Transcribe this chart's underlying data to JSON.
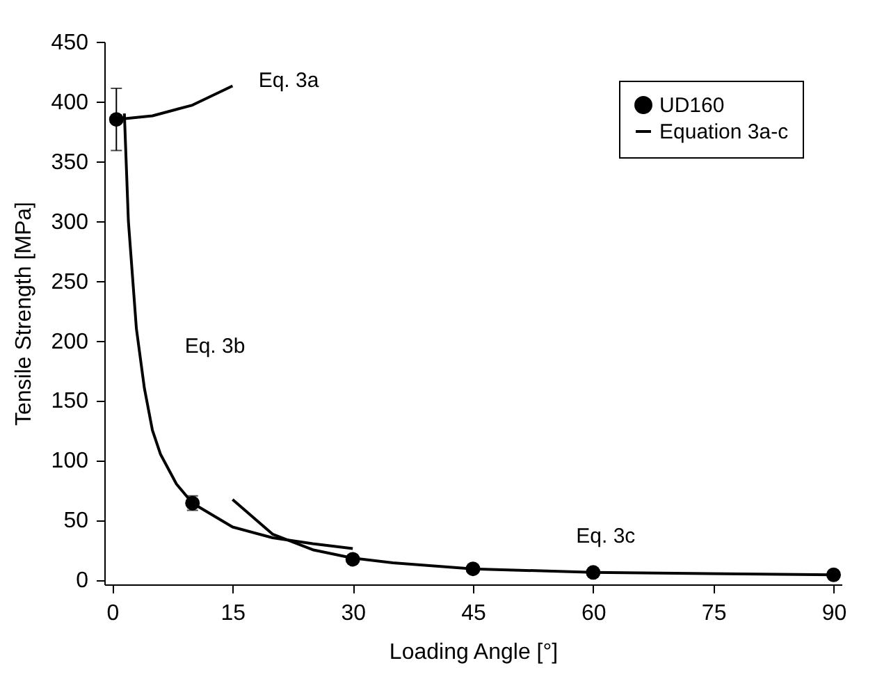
{
  "chart_data": {
    "type": "scatter",
    "xlabel": "Loading Angle [°]",
    "ylabel": "Tensile Strength [MPa]",
    "xlim": [
      -1,
      91
    ],
    "ylim": [
      -4,
      450
    ],
    "xticks": [
      0,
      15,
      30,
      45,
      60,
      75,
      90
    ],
    "yticks": [
      0,
      50,
      100,
      150,
      200,
      250,
      300,
      350,
      400,
      450
    ],
    "legend": "top right",
    "grid": false,
    "series": [
      {
        "name": "UD160",
        "marker": "circle",
        "color": "#000000",
        "x": [
          0.5,
          10,
          30,
          45,
          60,
          90
        ],
        "values": [
          385,
          64,
          17,
          9,
          6,
          4
        ],
        "errors": [
          26,
          6,
          null,
          null,
          null,
          null
        ]
      },
      {
        "name": "Equation 3a-c",
        "type": "line",
        "color": "#000000",
        "x": [
          0.5,
          5,
          10,
          15
        ],
        "values": [
          385,
          388,
          397,
          413
        ]
      },
      {
        "type": "line",
        "color": "#000000",
        "x": [
          1.5,
          2,
          3,
          4,
          5,
          6,
          8,
          10,
          15,
          20,
          25,
          30
        ],
        "values": [
          390,
          300,
          210,
          160,
          125,
          105,
          80,
          64,
          44,
          35,
          30,
          26
        ]
      },
      {
        "type": "line",
        "color": "#000000",
        "x": [
          15,
          20,
          25,
          30,
          35,
          45,
          60,
          90
        ],
        "values": [
          67,
          38,
          25,
          18,
          14,
          9,
          6,
          4
        ]
      }
    ],
    "annotations": [
      "Eq. 3a",
      "Eq. 3b",
      "Eq. 3c"
    ]
  }
}
